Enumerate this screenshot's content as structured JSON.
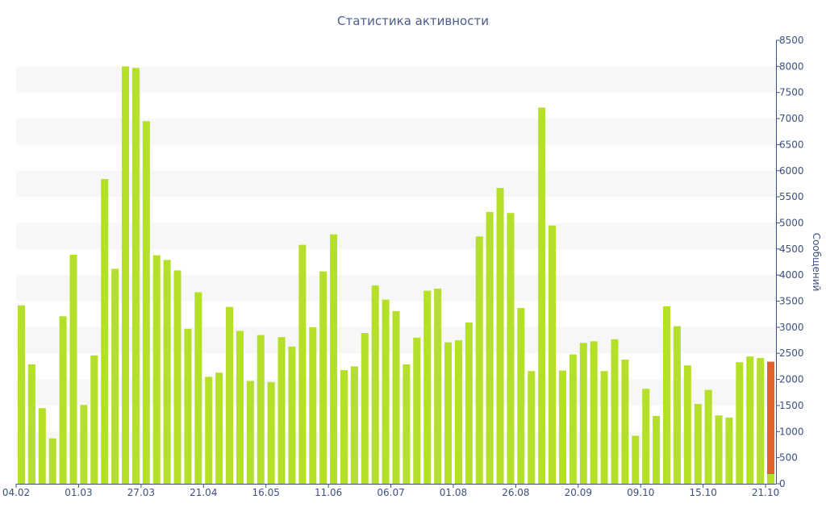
{
  "chart_data": {
    "type": "bar",
    "title": "Статистика активности",
    "ylabel": "Сообщений",
    "xlabel": "",
    "ylim": [
      0,
      8500
    ],
    "y_ticks": [
      0,
      500,
      1000,
      1500,
      2000,
      2500,
      3000,
      3500,
      4000,
      4500,
      5000,
      5500,
      6000,
      6500,
      7000,
      7500,
      8000,
      8500
    ],
    "x_tick_labels": [
      {
        "label": "04.02",
        "index": 0
      },
      {
        "label": "01.03",
        "index": 6
      },
      {
        "label": "27.03",
        "index": 12
      },
      {
        "label": "21.04",
        "index": 18
      },
      {
        "label": "16.05",
        "index": 24
      },
      {
        "label": "11.06",
        "index": 30
      },
      {
        "label": "06.07",
        "index": 36
      },
      {
        "label": "01.08",
        "index": 42
      },
      {
        "label": "26.08",
        "index": 48
      },
      {
        "label": "20.09",
        "index": 54
      },
      {
        "label": "09.10",
        "index": 60
      },
      {
        "label": "15.10",
        "index": 66
      },
      {
        "label": "21.10",
        "index": 72
      }
    ],
    "grid": "alternating horizontal bands",
    "y_axis_position": "right",
    "colors": {
      "bar": "#b5e02a",
      "last_bar": "#e0622a",
      "last_bar_base": "#b5e02a",
      "band": "#f7f7f7",
      "axis": "#3c5080"
    },
    "series": [
      {
        "values": [
          3420,
          2290,
          1450,
          870,
          3210,
          4390,
          1510,
          2460,
          5840,
          4120,
          8000,
          7970,
          6950,
          4380,
          4290,
          4090,
          2970,
          3670,
          2050,
          2130,
          3390,
          2930,
          1970,
          2850,
          1950,
          2810,
          2630,
          4580,
          3000,
          4070,
          4780,
          2180,
          2250,
          2890,
          3800,
          3530,
          3310,
          2290,
          2800,
          3700,
          3740,
          2710,
          2750,
          3090,
          4740,
          5210,
          5670,
          5190,
          3370,
          2160,
          7210,
          4950,
          2170,
          2480,
          2700,
          2730,
          2160,
          2770,
          2380,
          920,
          1820,
          1300,
          3400,
          3020,
          2270,
          1530,
          1800,
          1310,
          1270,
          2330,
          2440,
          2410,
          2340
        ]
      }
    ]
  }
}
